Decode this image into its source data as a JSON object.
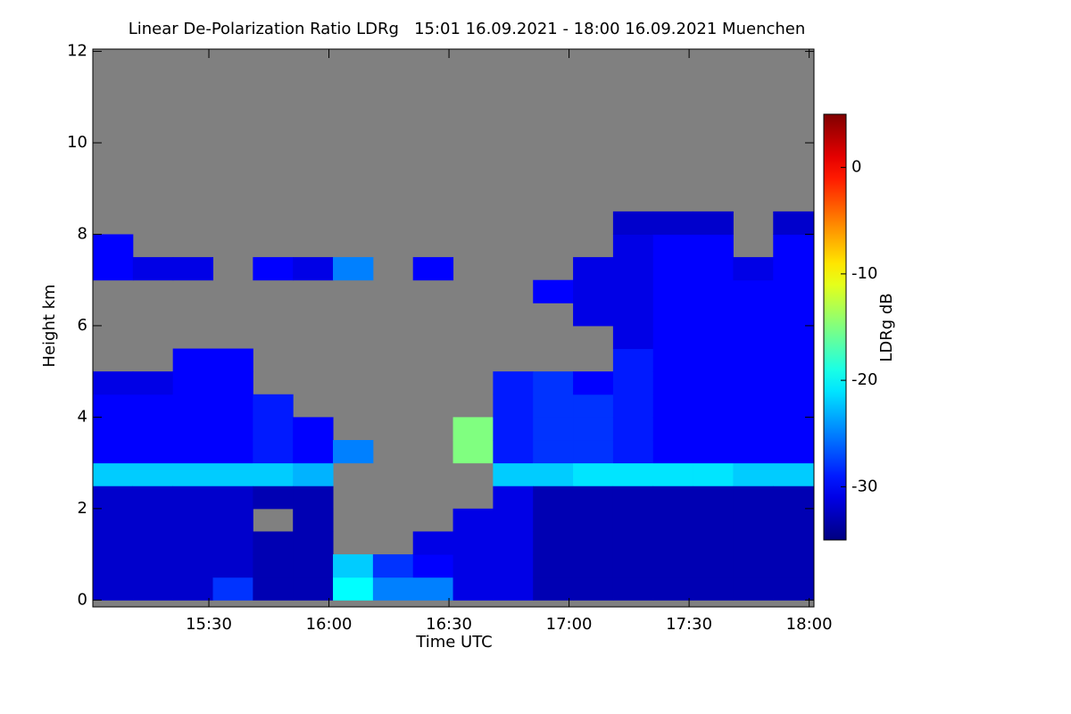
{
  "chart_data": {
    "type": "heatmap",
    "title": "Linear De-Polarization Ratio LDRg   15:01 16.09.2021 - 18:00 16.09.2021 Muenchen",
    "xlabel": "Time UTC",
    "ylabel": "Height km",
    "colorbar_label": "LDRg dB",
    "xlim": [
      15.0167,
      18.02
    ],
    "ylim": [
      -0.15,
      12.05
    ],
    "xticks": [
      {
        "value": 15.5,
        "label": "15:30"
      },
      {
        "value": 16,
        "label": "16:00"
      },
      {
        "value": 16.5,
        "label": "16:30"
      },
      {
        "value": 17,
        "label": "17:00"
      },
      {
        "value": 17.5,
        "label": "17:30"
      },
      {
        "value": 18,
        "label": "18:00"
      }
    ],
    "yticks": [
      0,
      2,
      4,
      6,
      8,
      10,
      12
    ],
    "clim": [
      -35,
      5
    ],
    "cticks": [
      0,
      -10,
      -20,
      -30
    ],
    "colormap": "jet",
    "no_data_color": "#808080",
    "x_edges": [
      15.0167,
      15.1833,
      15.35,
      15.5167,
      15.6833,
      15.85,
      16.0167,
      16.1833,
      16.35,
      16.5167,
      16.6833,
      16.85,
      17.0167,
      17.1833,
      17.35,
      17.5167,
      17.6833,
      17.85,
      18.0167
    ],
    "y_edges": [
      0,
      0.5,
      1,
      1.5,
      2,
      2.5,
      3,
      3.5,
      4,
      4.5,
      5,
      5.5,
      6,
      6.5,
      7,
      7.5,
      8,
      8.5,
      9
    ],
    "values": [
      [
        -32,
        -32,
        -32,
        -32,
        -32,
        -22,
        -30,
        -30,
        -30,
        -31,
        null,
        null,
        null,
        null,
        -30,
        -30,
        null,
        null
      ],
      [
        -32,
        -32,
        -32,
        -32,
        -32,
        -22,
        -30,
        -30,
        -30,
        -31,
        null,
        null,
        null,
        null,
        -31,
        null,
        null,
        null
      ],
      [
        -32,
        -32,
        -32,
        -32,
        -32,
        -22,
        -30,
        -30,
        -30,
        -30,
        -30,
        null,
        null,
        null,
        -31,
        null,
        null,
        null
      ],
      [
        -28,
        -32,
        -32,
        -32,
        -32,
        -22,
        -30,
        -30,
        -30,
        -30,
        -30,
        null,
        null,
        null,
        null,
        null,
        null,
        null
      ],
      [
        -33,
        -33,
        -33,
        null,
        -33,
        -22,
        -29,
        -29,
        -29,
        null,
        null,
        null,
        null,
        null,
        -30,
        null,
        null,
        null
      ],
      [
        -33,
        -33,
        -33,
        -33,
        -33,
        -23,
        -30,
        -30,
        null,
        null,
        null,
        null,
        null,
        null,
        -31,
        null,
        null,
        null
      ],
      [
        -20,
        -22,
        null,
        null,
        null,
        null,
        -25,
        null,
        null,
        null,
        null,
        null,
        null,
        null,
        -25,
        null,
        null,
        null
      ],
      [
        -25,
        -28,
        null,
        null,
        null,
        null,
        null,
        null,
        null,
        null,
        null,
        null,
        null,
        null,
        null,
        null,
        null,
        null
      ],
      [
        -25,
        -30,
        -31,
        null,
        null,
        null,
        null,
        null,
        null,
        null,
        null,
        null,
        null,
        null,
        -30,
        null,
        null,
        null
      ],
      [
        -31,
        -31,
        -31,
        -31,
        null,
        null,
        -15,
        -15,
        null,
        null,
        null,
        null,
        null,
        null,
        null,
        null,
        null,
        null
      ],
      [
        -31,
        -31,
        -31,
        -31,
        -31,
        -22,
        -29,
        -29,
        -29,
        -29,
        null,
        null,
        null,
        null,
        null,
        null,
        null,
        null
      ],
      [
        -33,
        -33,
        -33,
        -33,
        -33,
        -22,
        -28,
        -28,
        -28,
        -28,
        null,
        null,
        null,
        -30,
        null,
        null,
        null,
        null
      ],
      [
        -33,
        -33,
        -33,
        -33,
        -33,
        -21,
        -28,
        -28,
        -28,
        -30,
        null,
        null,
        -31,
        -31,
        -31,
        null,
        null,
        null
      ],
      [
        -33,
        -33,
        -33,
        -33,
        -33,
        -21,
        -29,
        -29,
        -29,
        -29,
        -29,
        -31,
        -31,
        -31,
        -31,
        -31,
        -32,
        null
      ],
      [
        -33,
        -33,
        -33,
        -33,
        -33,
        -21,
        -30,
        -30,
        -30,
        -30,
        -30,
        -30,
        -30,
        -30,
        -30,
        -30,
        -32,
        null
      ],
      [
        -33,
        -33,
        -33,
        -33,
        -33,
        -21,
        -30,
        -30,
        -30,
        -30,
        -30,
        -30,
        -30,
        -30,
        -30,
        -30,
        -32,
        null
      ],
      [
        -33,
        -33,
        -33,
        -33,
        -33,
        -22,
        -30,
        -30,
        -30,
        -30,
        -30,
        -30,
        -30,
        -30,
        -31,
        null,
        null,
        null
      ],
      [
        -33,
        -33,
        -33,
        -33,
        -33,
        -22,
        -30,
        -30,
        -30,
        -30,
        -30,
        -30,
        -30,
        -30,
        -30,
        -30,
        -32,
        null
      ]
    ]
  }
}
